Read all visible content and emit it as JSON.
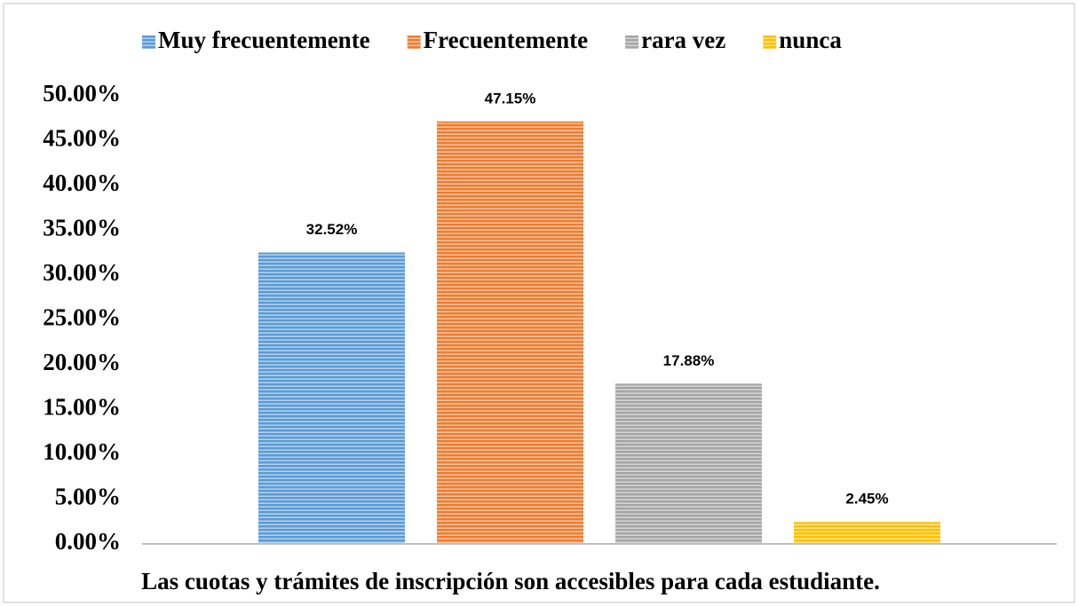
{
  "chart_data": {
    "type": "bar",
    "categories": [
      "Las cuotas y trámites de inscripción son accesibles para cada estudiante."
    ],
    "series": [
      {
        "name": "Muy frecuentemente",
        "color": "#5b9bd5",
        "values": [
          32.52
        ],
        "value_labels": [
          "32.52%"
        ]
      },
      {
        "name": "Frecuentemente",
        "color": "#ed7d31",
        "values": [
          47.15
        ],
        "value_labels": [
          "47.15%"
        ]
      },
      {
        "name": "rara vez",
        "color": "#a5a5a5",
        "values": [
          17.88
        ],
        "value_labels": [
          "17.88%"
        ]
      },
      {
        "name": "nunca",
        "color": "#ffc000",
        "values": [
          2.45
        ],
        "value_labels": [
          "2.45%"
        ]
      }
    ],
    "ylim": [
      0,
      50
    ],
    "yticks": [
      {
        "value": 0,
        "label": "0.00%"
      },
      {
        "value": 5,
        "label": "5.00%"
      },
      {
        "value": 10,
        "label": "10.00%"
      },
      {
        "value": 15,
        "label": "15.00%"
      },
      {
        "value": 20,
        "label": "20.00%"
      },
      {
        "value": 25,
        "label": "25.00%"
      },
      {
        "value": 30,
        "label": "30.00%"
      },
      {
        "value": 35,
        "label": "35.00%"
      },
      {
        "value": 40,
        "label": "40.00%"
      },
      {
        "value": 45,
        "label": "45.00%"
      },
      {
        "value": 50,
        "label": "50.00%"
      }
    ],
    "grid": false,
    "legend": "top"
  }
}
